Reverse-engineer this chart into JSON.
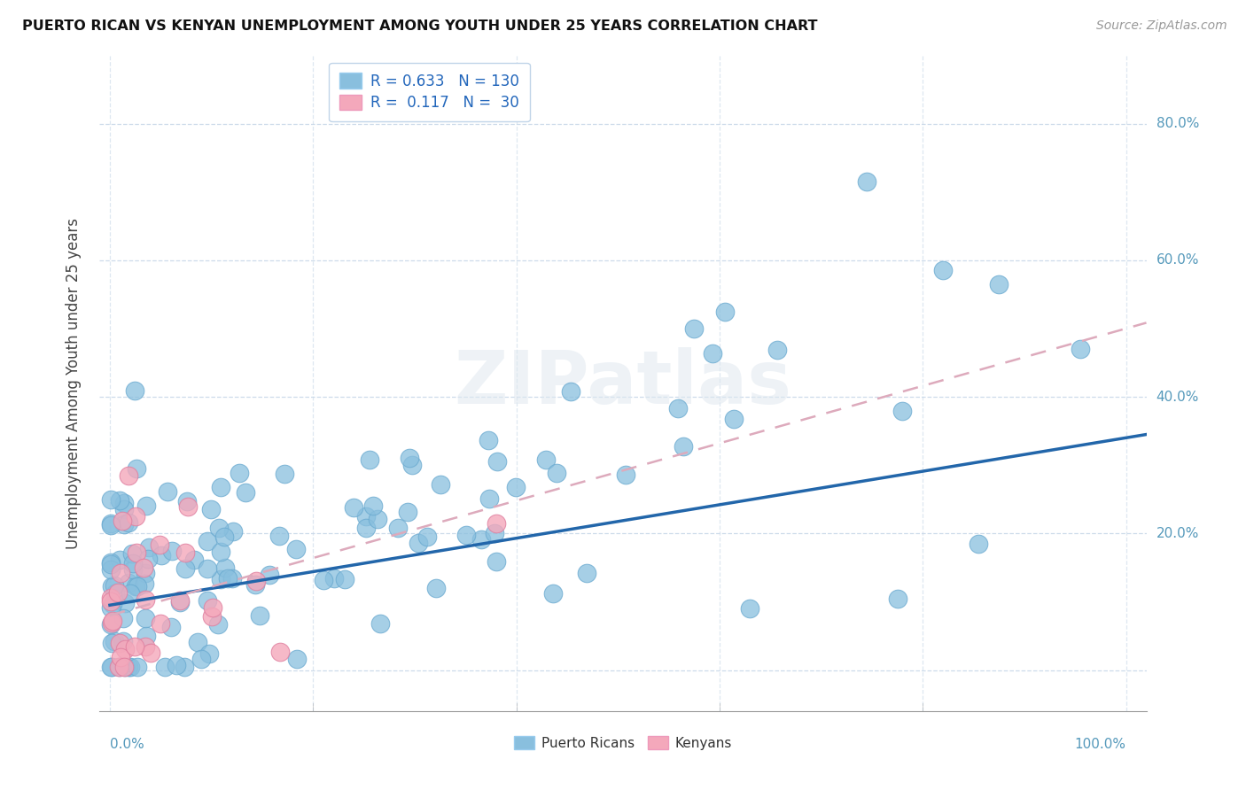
{
  "title": "PUERTO RICAN VS KENYAN UNEMPLOYMENT AMONG YOUTH UNDER 25 YEARS CORRELATION CHART",
  "source": "Source: ZipAtlas.com",
  "ylabel": "Unemployment Among Youth under 25 years",
  "ytick_values": [
    0.0,
    0.2,
    0.4,
    0.6,
    0.8
  ],
  "ytick_labels": [
    "",
    "20.0%",
    "40.0%",
    "60.0%",
    "80.0%"
  ],
  "xlim": [
    -0.01,
    1.02
  ],
  "ylim": [
    -0.06,
    0.9
  ],
  "pr_color": "#89bfde",
  "ke_color": "#f4a8bb",
  "pr_line_color": "#2266aa",
  "ke_line_color": "#ddaabc",
  "background_color": "#ffffff",
  "watermark": "ZIPatlas",
  "pr_N": 130,
  "ke_N": 30,
  "pr_slope": 0.245,
  "pr_intercept": 0.095,
  "ke_slope": 0.42,
  "ke_intercept": 0.08,
  "seed": 17
}
